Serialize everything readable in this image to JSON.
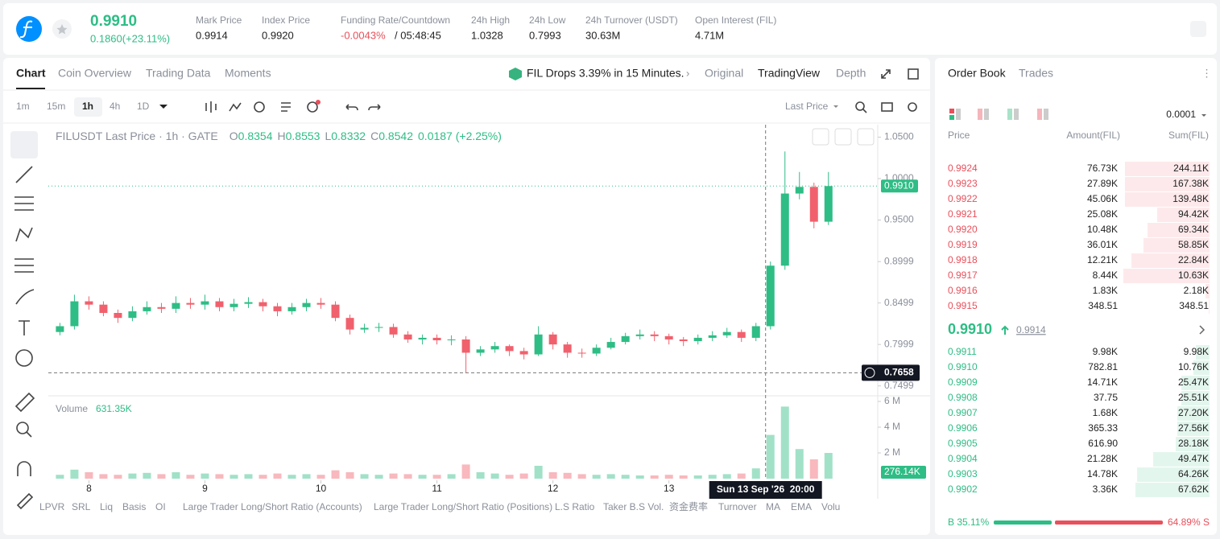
{
  "header": {
    "price": "0.9910",
    "change": "0.1860(+23.11%)",
    "stats": [
      {
        "label": "Mark Price",
        "value": "0.9914"
      },
      {
        "label": "Index Price",
        "value": "0.9920"
      },
      {
        "label": "Funding Rate/Countdown",
        "value": "-0.0043%",
        "value2": "/ 05:48:45"
      },
      {
        "label": "24h High",
        "value": "1.0328"
      },
      {
        "label": "24h Low",
        "value": "0.7993"
      },
      {
        "label": "24h Turnover (USDT)",
        "value": "30.63M"
      },
      {
        "label": "Open Interest (FIL)",
        "value": "4.71M"
      }
    ]
  },
  "chart_tabs": [
    "Chart",
    "Coin Overview",
    "Trading Data",
    "Moments"
  ],
  "news": "FIL Drops 3.39% in 15 Minutes.",
  "view_tabs": [
    "Original",
    "TradingView",
    "Depth"
  ],
  "intervals": [
    "1m",
    "15m",
    "1h",
    "4h",
    "1D"
  ],
  "price_type": "Last Price",
  "indicators": [
    "LPVR",
    "SRL",
    "Liq",
    "Basis",
    "OI",
    "Large Trader Long/Short Ratio (Accounts)",
    "Large Trader Long/Short Ratio (Positions)",
    "L.S Ratio",
    "Taker B.S Vol.",
    "资金费率",
    "Turnover",
    "MA",
    "EMA",
    "Volu"
  ],
  "chart_data": {
    "type": "candlestick",
    "title": "FILUSDT Last Price · 1h · GATE",
    "legend": [
      {
        "k": "O",
        "v": "0.8354"
      },
      {
        "k": "H",
        "v": "0.8553"
      },
      {
        "k": "L",
        "v": "0.8332"
      },
      {
        "k": "C",
        "v": "0.8542"
      }
    ],
    "legend_change": "0.0187 (+2.25%)",
    "up_color": "#2ebd85",
    "down_color": "#f0616d",
    "x": [
      7.75,
      7.875,
      8,
      8.125,
      8.25,
      8.375,
      8.5,
      8.625,
      8.75,
      8.875,
      9,
      9.125,
      9.25,
      9.375,
      9.5,
      9.625,
      9.75,
      9.875,
      10,
      10.125,
      10.25,
      10.375,
      10.5,
      10.625,
      10.75,
      10.875,
      11,
      11.125,
      11.25,
      11.375,
      11.5,
      11.625,
      11.75,
      11.875,
      12,
      12.125,
      12.25,
      12.375,
      12.5,
      12.625,
      12.75,
      12.875,
      13,
      13.125,
      13.25,
      13.375,
      13.5,
      13.625,
      13.75,
      13.875,
      14,
      14.125,
      14.25,
      14.375
    ],
    "open": [
      0.815,
      0.822,
      0.852,
      0.848,
      0.838,
      0.832,
      0.84,
      0.845,
      0.843,
      0.85,
      0.848,
      0.852,
      0.845,
      0.849,
      0.851,
      0.846,
      0.84,
      0.845,
      0.85,
      0.848,
      0.832,
      0.818,
      0.82,
      0.821,
      0.812,
      0.806,
      0.808,
      0.805,
      0.806,
      0.79,
      0.794,
      0.798,
      0.792,
      0.788,
      0.812,
      0.8,
      0.79,
      0.789,
      0.796,
      0.803,
      0.81,
      0.812,
      0.81,
      0.806,
      0.804,
      0.808,
      0.811,
      0.815,
      0.808,
      0.822,
      0.895,
      0.982,
      0.99,
      0.948
    ],
    "high": [
      0.826,
      0.86,
      0.858,
      0.852,
      0.842,
      0.846,
      0.852,
      0.85,
      0.858,
      0.856,
      0.86,
      0.856,
      0.855,
      0.857,
      0.855,
      0.85,
      0.85,
      0.855,
      0.856,
      0.852,
      0.836,
      0.825,
      0.826,
      0.825,
      0.816,
      0.812,
      0.812,
      0.811,
      0.81,
      0.798,
      0.803,
      0.8,
      0.796,
      0.822,
      0.815,
      0.803,
      0.795,
      0.8,
      0.808,
      0.814,
      0.818,
      0.816,
      0.813,
      0.809,
      0.812,
      0.816,
      0.82,
      0.818,
      0.826,
      0.9,
      1.0328,
      1.008,
      0.995,
      1.008
    ],
    "low": [
      0.811,
      0.818,
      0.842,
      0.834,
      0.826,
      0.828,
      0.836,
      0.838,
      0.838,
      0.843,
      0.842,
      0.84,
      0.84,
      0.844,
      0.84,
      0.834,
      0.836,
      0.84,
      0.843,
      0.828,
      0.812,
      0.814,
      0.815,
      0.808,
      0.802,
      0.8,
      0.8,
      0.799,
      0.766,
      0.786,
      0.79,
      0.786,
      0.782,
      0.786,
      0.794,
      0.784,
      0.784,
      0.786,
      0.794,
      0.8,
      0.806,
      0.804,
      0.8,
      0.798,
      0.8,
      0.804,
      0.808,
      0.803,
      0.804,
      0.818,
      0.89,
      0.975,
      0.94,
      0.944
    ],
    "close": [
      0.822,
      0.852,
      0.848,
      0.838,
      0.832,
      0.84,
      0.845,
      0.843,
      0.85,
      0.848,
      0.852,
      0.845,
      0.849,
      0.851,
      0.846,
      0.84,
      0.845,
      0.85,
      0.848,
      0.832,
      0.818,
      0.82,
      0.821,
      0.812,
      0.806,
      0.808,
      0.805,
      0.806,
      0.79,
      0.794,
      0.798,
      0.792,
      0.788,
      0.812,
      0.8,
      0.79,
      0.789,
      0.796,
      0.803,
      0.81,
      0.812,
      0.81,
      0.806,
      0.804,
      0.808,
      0.811,
      0.815,
      0.808,
      0.822,
      0.895,
      0.982,
      0.99,
      0.948,
      0.991
    ],
    "volume": [
      300000,
      700000,
      500000,
      350000,
      300000,
      400000,
      450000,
      350000,
      500000,
      300000,
      400000,
      350000,
      300000,
      350000,
      300000,
      400000,
      300000,
      350000,
      300000,
      650000,
      500000,
      350000,
      300000,
      400000,
      350000,
      300000,
      300000,
      350000,
      1100000,
      500000,
      400000,
      300000,
      400000,
      1000000,
      500000,
      450000,
      350000,
      300000,
      350000,
      300000,
      250000,
      250000,
      300000,
      250000,
      250000,
      300000,
      350000,
      400000,
      800000,
      3400000,
      5600000,
      2300000,
      1500000,
      2000000
    ],
    "xlim": [
      7.65,
      14.8
    ],
    "xticks": [
      8,
      9,
      10,
      11,
      12,
      13
    ],
    "ylim": [
      0.74,
      1.065
    ],
    "yticks": [
      {
        "value": 0.75,
        "label": "0.7499"
      },
      {
        "value": 0.8,
        "label": "0.7999"
      },
      {
        "value": 0.85,
        "label": "0.8499"
      },
      0.8999,
      {
        "value": 0.95,
        "label": "0.9500"
      },
      {
        "value": 1,
        "label": "1.0000"
      },
      {
        "value": 1.05,
        "label": "1.0500"
      }
    ],
    "current_price": {
      "value": 0.991,
      "label": "0.9910"
    },
    "crosshair": {
      "x": 13.833,
      "time": "Sun 13 Sep '26  20:00",
      "price": {
        "value": 0.7658,
        "label": "0.7658"
      }
    },
    "volume_title": "Volume",
    "volume_value": "631.35K",
    "volume_last": "276.14K",
    "vol_ylim": [
      0,
      6250000
    ],
    "vol_yticks": [
      {
        "value": 2000000,
        "label": "2 M"
      },
      {
        "value": 4000000,
        "label": "4 M"
      },
      {
        "value": 6000000,
        "label": "6 M"
      }
    ]
  },
  "order_book": {
    "tabs": [
      "Order Book",
      "Trades"
    ],
    "precision": "0.0001",
    "columns": [
      "Price",
      "Amount(FIL)",
      "Sum(FIL)"
    ],
    "asks": [
      [
        "0.9924",
        "76.73K",
        "244.11K"
      ],
      [
        "0.9923",
        "27.89K",
        "167.38K"
      ],
      [
        "0.9922",
        "45.06K",
        "139.48K"
      ],
      [
        "0.9921",
        "25.08K",
        "94.42K"
      ],
      [
        "0.9920",
        "10.48K",
        "69.34K"
      ],
      [
        "0.9919",
        "36.01K",
        "58.85K"
      ],
      [
        "0.9918",
        "12.21K",
        "22.84K"
      ],
      [
        "0.9917",
        "8.44K",
        "10.63K"
      ],
      [
        "0.9916",
        "1.83K",
        "2.18K"
      ],
      [
        "0.9915",
        "348.51",
        "348.51"
      ]
    ],
    "last": "0.9910",
    "mark": "0.9914",
    "bids": [
      [
        "0.9911",
        "9.98K",
        "9.98K"
      ],
      [
        "0.9910",
        "782.81",
        "10.76K"
      ],
      [
        "0.9909",
        "14.71K",
        "25.47K"
      ],
      [
        "0.9908",
        "37.75",
        "25.51K"
      ],
      [
        "0.9907",
        "1.68K",
        "27.20K"
      ],
      [
        "0.9906",
        "365.33",
        "27.56K"
      ],
      [
        "0.9905",
        "616.90",
        "28.18K"
      ],
      [
        "0.9904",
        "21.28K",
        "49.47K"
      ],
      [
        "0.9903",
        "14.78K",
        "64.26K"
      ],
      [
        "0.9902",
        "3.36K",
        "67.62K"
      ]
    ],
    "buy_ratio": "B 35.11%",
    "sell_ratio": "64.89% S"
  }
}
